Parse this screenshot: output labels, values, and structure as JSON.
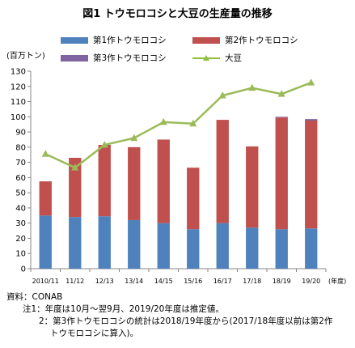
{
  "title": "図1 トウモロコシと大豆の生産量の推移",
  "unit_label": "(百万トン)",
  "year_unit": "(年度)",
  "notes": {
    "source": "資料：CONAB",
    "note1": "注1：年度は10月～翌9月、2019/20年度は推定値。",
    "note2a": "2：第3作トウモロコシの統計は2018/19年度から(2017/18年度以前は第2作",
    "note2b": "トウモロコシに算入)。"
  },
  "colors": {
    "first_crop": "#4f81bd",
    "second_crop": "#c0504d",
    "third_crop": "#8064a2",
    "soy": "#9bbb59",
    "axis": "#868686"
  },
  "chart_data": {
    "type": "bar",
    "stacked": true,
    "categories": [
      "2010/11",
      "11/12",
      "12/13",
      "13/14",
      "14/15",
      "15/16",
      "16/17",
      "17/18",
      "18/19",
      "19/20"
    ],
    "series": [
      {
        "name": "第1作トウモロコシ",
        "type": "bar",
        "values": [
          35,
          34,
          34.5,
          32,
          30,
          26,
          30,
          27,
          26,
          26.5
        ]
      },
      {
        "name": "第2作トウモロコシ",
        "type": "bar",
        "values": [
          22.5,
          39,
          47,
          48,
          55,
          40.5,
          68,
          53.5,
          73.5,
          71
        ]
      },
      {
        "name": "第3作トウモロコシ",
        "type": "bar",
        "values": [
          0,
          0,
          0,
          0,
          0,
          0,
          0,
          0,
          0.5,
          1
        ]
      },
      {
        "name": "大豆",
        "type": "line",
        "values": [
          75.5,
          66.5,
          81.5,
          86,
          96.5,
          95.5,
          114,
          119,
          115,
          122.5
        ]
      }
    ],
    "ylim": [
      0,
      130
    ],
    "yticks": [
      0,
      10,
      20,
      30,
      40,
      50,
      60,
      70,
      80,
      90,
      100,
      110,
      120,
      130
    ],
    "grid": false,
    "legend": "top"
  }
}
